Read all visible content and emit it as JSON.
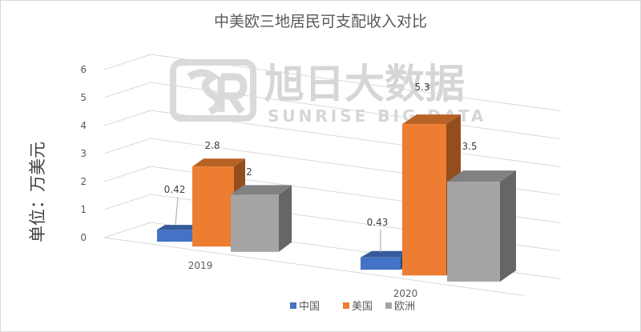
{
  "chart_data": {
    "type": "bar",
    "title": "中美欧三地居民可支配收入对比",
    "ylabel": "单位：万美元",
    "xlabel": "",
    "ylim": [
      0,
      6
    ],
    "yticks": [
      "0",
      "1",
      "2",
      "3",
      "4",
      "5",
      "6"
    ],
    "categories": [
      "2019",
      "2020"
    ],
    "series": [
      {
        "name": "中国",
        "values": [
          0.42,
          0.43
        ],
        "labels": [
          "0.42",
          "0.43"
        ],
        "color": "#4472C4"
      },
      {
        "name": "美国",
        "values": [
          2.8,
          5.3
        ],
        "labels": [
          "2.8",
          "5.3"
        ],
        "color": "#ED7D31"
      },
      {
        "name": "欧洲",
        "values": [
          2,
          3.5
        ],
        "labels": [
          "2",
          "3.5"
        ],
        "color": "#A5A5A5"
      }
    ],
    "grid": true,
    "legend": "bottom",
    "projection": "3d"
  },
  "watermark": {
    "name_cn": "旭日大数据",
    "name_en": "SUNRISE BIG DATA"
  }
}
